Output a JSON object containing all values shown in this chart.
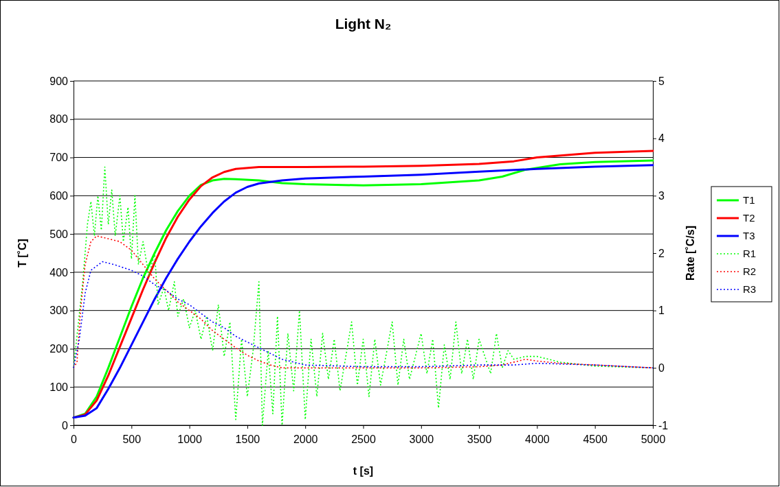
{
  "chart_data": {
    "type": "line",
    "title": "Light N₂",
    "xlabel": "t [s]",
    "ylabel": "T [˚C]",
    "y2label": "Rate [˚C/s]",
    "xlim": [
      0,
      5000
    ],
    "xticks": [
      0,
      500,
      1000,
      1500,
      2000,
      2500,
      3000,
      3500,
      4000,
      4500,
      5000
    ],
    "ylim": [
      0,
      900
    ],
    "yticks": [
      0,
      100,
      200,
      300,
      400,
      500,
      600,
      700,
      800,
      900
    ],
    "y2lim": [
      -1,
      5
    ],
    "y2ticks": [
      -1,
      0,
      1,
      2,
      3,
      4,
      5
    ],
    "grid": "y",
    "legend": "right",
    "marker": "none",
    "series": [
      {
        "name": "T1",
        "color": "#00ff00",
        "line_style": "solid",
        "x": [
          0,
          100,
          200,
          300,
          400,
          500,
          600,
          700,
          800,
          900,
          1000,
          1100,
          1200,
          1300,
          1400,
          1600,
          1800,
          2000,
          2500,
          3000,
          3500,
          3700,
          3900,
          4200,
          4500,
          5000
        ],
        "values": [
          20,
          30,
          75,
          150,
          230,
          310,
          385,
          450,
          510,
          560,
          600,
          628,
          640,
          644,
          643,
          640,
          633,
          630,
          627,
          630,
          640,
          650,
          668,
          682,
          688,
          692
        ]
      },
      {
        "name": "T2",
        "color": "#ff0000",
        "line_style": "solid",
        "x": [
          0,
          100,
          200,
          300,
          400,
          500,
          600,
          700,
          800,
          900,
          1000,
          1100,
          1200,
          1300,
          1400,
          1600,
          2000,
          2500,
          3000,
          3500,
          3800,
          4000,
          4500,
          5000
        ],
        "values": [
          20,
          28,
          65,
          130,
          205,
          280,
          355,
          425,
          490,
          545,
          590,
          625,
          648,
          662,
          670,
          675,
          675,
          676,
          678,
          683,
          690,
          700,
          712,
          717
        ]
      },
      {
        "name": "T3",
        "color": "#0000ff",
        "line_style": "solid",
        "x": [
          0,
          100,
          200,
          300,
          400,
          500,
          600,
          700,
          800,
          900,
          1000,
          1100,
          1200,
          1300,
          1400,
          1500,
          1600,
          1800,
          2000,
          2500,
          3000,
          3500,
          4000,
          4500,
          5000
        ],
        "values": [
          20,
          25,
          45,
          95,
          150,
          210,
          270,
          330,
          385,
          435,
          480,
          520,
          555,
          585,
          608,
          623,
          632,
          640,
          645,
          650,
          655,
          663,
          670,
          676,
          680
        ]
      },
      {
        "name": "R1",
        "color": "#00ff00",
        "line_style": "dotted",
        "axis": "y2",
        "x": [
          0,
          80,
          120,
          150,
          180,
          210,
          240,
          270,
          300,
          330,
          360,
          400,
          430,
          470,
          500,
          530,
          560,
          600,
          650,
          700,
          730,
          780,
          820,
          870,
          900,
          950,
          1000,
          1050,
          1100,
          1150,
          1200,
          1250,
          1300,
          1350,
          1400,
          1450,
          1500,
          1550,
          1600,
          1630,
          1680,
          1720,
          1760,
          1800,
          1850,
          1900,
          1950,
          2000,
          2050,
          2100,
          2150,
          2200,
          2250,
          2300,
          2400,
          2450,
          2500,
          2550,
          2600,
          2650,
          2750,
          2800,
          2850,
          2900,
          3000,
          3050,
          3100,
          3150,
          3200,
          3250,
          3300,
          3350,
          3400,
          3450,
          3500,
          3600,
          3650,
          3700,
          3750,
          3800,
          3900,
          4000,
          4200,
          4500,
          5000
        ],
        "values": [
          0,
          1.5,
          2.5,
          2.9,
          2.3,
          3.0,
          2.4,
          3.5,
          2.5,
          3.1,
          2.3,
          3.0,
          2.2,
          2.8,
          1.9,
          3.0,
          1.8,
          2.2,
          1.6,
          2.0,
          1.1,
          1.4,
          1.0,
          1.5,
          0.9,
          1.2,
          0.7,
          1.0,
          0.5,
          0.9,
          0.3,
          1.1,
          0.2,
          0.8,
          -0.9,
          0.5,
          -0.5,
          0.3,
          1.5,
          -1.0,
          0.3,
          -0.8,
          0.9,
          -1.0,
          0.6,
          -0.4,
          1.0,
          -0.9,
          0.5,
          -0.5,
          0.6,
          -0.2,
          0.5,
          -0.4,
          0.8,
          -0.3,
          0.5,
          -0.5,
          0.5,
          -0.3,
          0.8,
          -0.3,
          0.5,
          -0.2,
          0.6,
          -0.1,
          0.5,
          -0.7,
          0.4,
          -0.2,
          0.8,
          -0.1,
          0.5,
          -0.2,
          0.5,
          -0.1,
          0.6,
          0.0,
          0.3,
          0.15,
          0.2,
          0.2,
          0.1,
          0.03,
          0
        ]
      },
      {
        "name": "R2",
        "color": "#ff0000",
        "line_style": "dotted",
        "axis": "y2",
        "x": [
          0,
          30,
          60,
          100,
          150,
          200,
          300,
          400,
          500,
          600,
          700,
          800,
          900,
          1000,
          1100,
          1200,
          1300,
          1400,
          1500,
          1600,
          1700,
          1800,
          2000,
          2500,
          3000,
          3500,
          3700,
          3900,
          4000,
          4200,
          4500,
          5000
        ],
        "values": [
          0,
          0.1,
          1,
          1.8,
          2.2,
          2.3,
          2.25,
          2.2,
          2.05,
          1.8,
          1.55,
          1.35,
          1.15,
          1.0,
          0.85,
          0.65,
          0.5,
          0.35,
          0.22,
          0.12,
          0.05,
          0,
          0,
          0,
          0,
          0.02,
          0.05,
          0.15,
          0.12,
          0.08,
          0.05,
          0
        ]
      },
      {
        "name": "R3",
        "color": "#0000ff",
        "line_style": "dotted",
        "axis": "y2",
        "x": [
          0,
          50,
          100,
          150,
          250,
          350,
          500,
          600,
          700,
          800,
          900,
          1000,
          1100,
          1200,
          1300,
          1400,
          1500,
          1600,
          1800,
          2000,
          2500,
          3000,
          3500,
          3800,
          4000,
          4500,
          5000
        ],
        "values": [
          0,
          0.5,
          1.3,
          1.7,
          1.85,
          1.8,
          1.7,
          1.6,
          1.45,
          1.35,
          1.2,
          1.1,
          0.95,
          0.8,
          0.7,
          0.55,
          0.45,
          0.35,
          0.15,
          0.05,
          0.02,
          0.02,
          0.05,
          0.05,
          0.08,
          0.05,
          0
        ]
      }
    ]
  }
}
